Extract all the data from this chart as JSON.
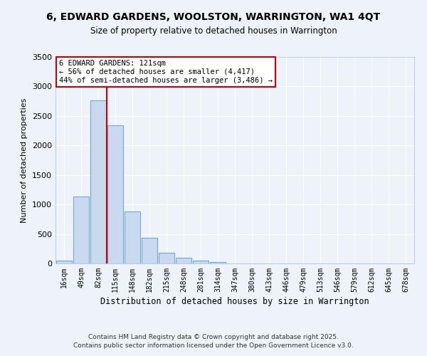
{
  "title": "6, EDWARD GARDENS, WOOLSTON, WARRINGTON, WA1 4QT",
  "subtitle": "Size of property relative to detached houses in Warrington",
  "xlabel": "Distribution of detached houses by size in Warrington",
  "ylabel": "Number of detached properties",
  "bin_labels": [
    "16sqm",
    "49sqm",
    "82sqm",
    "115sqm",
    "148sqm",
    "182sqm",
    "215sqm",
    "248sqm",
    "281sqm",
    "314sqm",
    "347sqm",
    "380sqm",
    "413sqm",
    "446sqm",
    "479sqm",
    "513sqm",
    "546sqm",
    "579sqm",
    "612sqm",
    "645sqm",
    "678sqm"
  ],
  "bar_values": [
    50,
    1130,
    2760,
    2340,
    880,
    430,
    185,
    95,
    50,
    20,
    5,
    2,
    1,
    0,
    0,
    0,
    0,
    0,
    0,
    0,
    0
  ],
  "bar_color": "#c9d9f0",
  "bar_edge_color": "#6fa8dc",
  "vline_color": "#cc0000",
  "annotation_title": "6 EDWARD GARDENS: 121sqm",
  "annotation_line1": "← 56% of detached houses are smaller (4,417)",
  "annotation_line2": "44% of semi-detached houses are larger (3,486) →",
  "annotation_box_color": "#ffffff",
  "annotation_box_edge": "#cc0000",
  "ylim": [
    0,
    3500
  ],
  "yticks": [
    0,
    500,
    1000,
    1500,
    2000,
    2500,
    3000,
    3500
  ],
  "footer1": "Contains HM Land Registry data © Crown copyright and database right 2025.",
  "footer2": "Contains public sector information licensed under the Open Government Licence v3.0.",
  "background_color": "#eef2fa",
  "grid_color": "#ffffff"
}
